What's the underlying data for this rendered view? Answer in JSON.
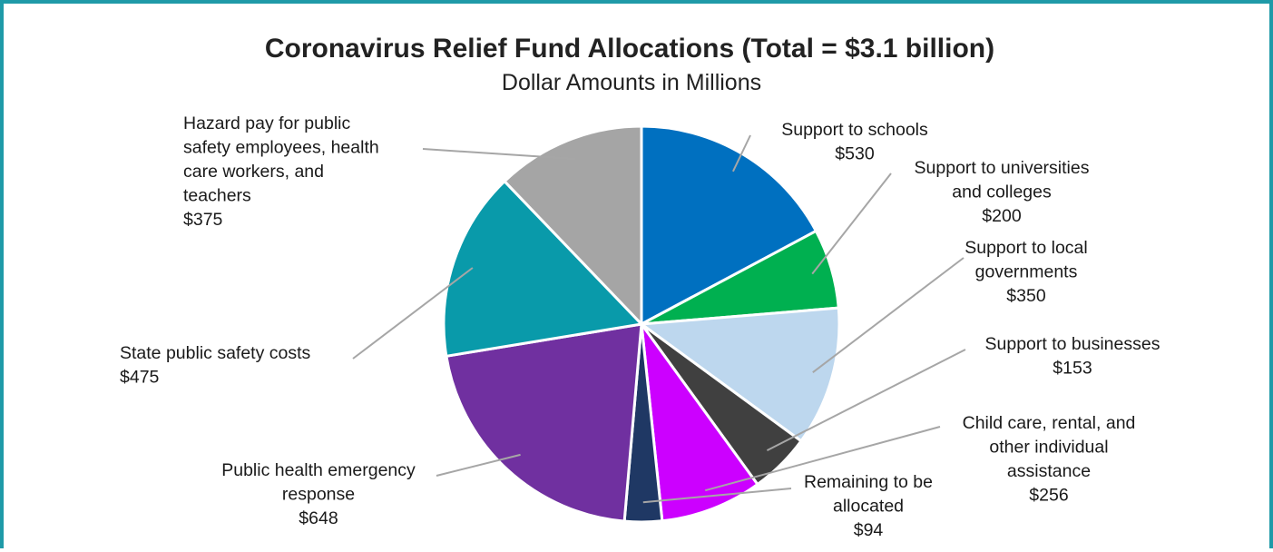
{
  "chart_data": {
    "type": "pie",
    "title": "Coronavirus Relief Fund Allocations (Total = $3.1 billion)",
    "subtitle": "Dollar Amounts in Millions",
    "legend": "none",
    "slices": [
      {
        "label": "Support to schools",
        "label_lines": [
          "Support to schools"
        ],
        "value": 530,
        "value_label": "$530",
        "color": "#0070c0"
      },
      {
        "label": "Support to universities and colleges",
        "label_lines": [
          "Support to universities",
          "and colleges"
        ],
        "value": 200,
        "value_label": "$200",
        "color": "#00b050"
      },
      {
        "label": "Support to local governments",
        "label_lines": [
          "Support to local",
          "governments"
        ],
        "value": 350,
        "value_label": "$350",
        "color": "#bdd7ee"
      },
      {
        "label": "Support to businesses",
        "label_lines": [
          "Support to businesses"
        ],
        "value": 153,
        "value_label": "$153",
        "color": "#404040"
      },
      {
        "label": "Child care, rental, and other individual assistance",
        "label_lines": [
          "Child care, rental, and",
          "other individual",
          "assistance"
        ],
        "value": 256,
        "value_label": "$256",
        "color": "#cc00ff"
      },
      {
        "label": "Remaining to be allocated",
        "label_lines": [
          "Remaining to be",
          "allocated"
        ],
        "value": 94,
        "value_label": "$94",
        "color": "#1f3864"
      },
      {
        "label": "Public health emergency response",
        "label_lines": [
          "Public health emergency",
          "response"
        ],
        "value": 648,
        "value_label": "$648",
        "color": "#7030a0"
      },
      {
        "label": "State public safety costs",
        "label_lines": [
          "State public safety costs"
        ],
        "value": 475,
        "value_label": "$475",
        "color": "#099aaa"
      },
      {
        "label": "Hazard pay for public safety employees, health care workers, and teachers",
        "label_lines": [
          "Hazard pay for public",
          "safety employees, health",
          "care workers, and",
          "teachers"
        ],
        "value": 375,
        "value_label": "$375",
        "color": "#a5a5a5"
      }
    ]
  }
}
